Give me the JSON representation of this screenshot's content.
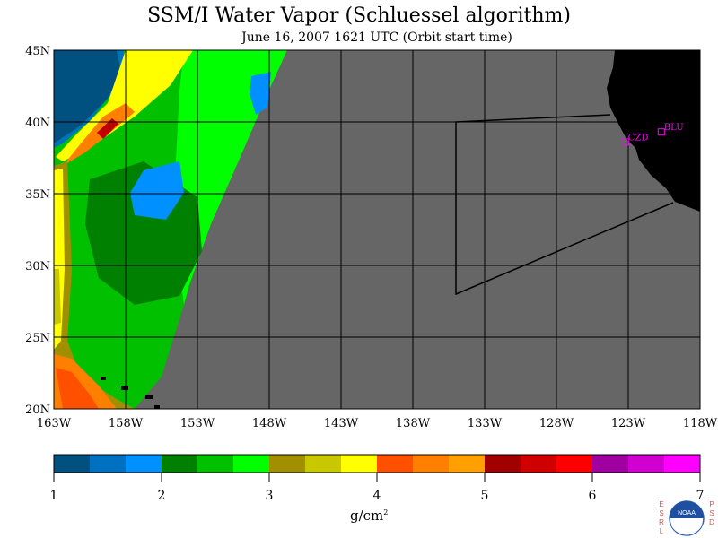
{
  "title": "SSM/I Water Vapor (Schluessel algorithm)",
  "subtitle": "June 16, 2007  1621 UTC  (Orbit start time)",
  "map": {
    "lat_labels": [
      "45N",
      "40N",
      "35N",
      "30N",
      "25N",
      "20N"
    ],
    "lon_labels": [
      "163W",
      "158W",
      "153W",
      "148W",
      "143W",
      "138W",
      "133W",
      "128W",
      "123W",
      "118W"
    ],
    "stations": [
      {
        "label": "CZD",
        "lat": 38.6,
        "lon": -123.2
      },
      {
        "label": "BLU",
        "lat": 39.3,
        "lon": -120.7
      }
    ],
    "colors": {
      "nodata": "#666666",
      "land": "#000000",
      "grid": "#000000",
      "station": "#ff00ff"
    }
  },
  "colorbar": {
    "unit_base": "g/cm",
    "unit_exp": "2",
    "tick_labels": [
      "1",
      "2",
      "3",
      "4",
      "5",
      "6",
      "7"
    ],
    "colors": [
      "#005080",
      "#0070c0",
      "#0090ff",
      "#008000",
      "#00c000",
      "#00ff00",
      "#a09000",
      "#c8c800",
      "#ffff00",
      "#ff5000",
      "#ff8000",
      "#ffa000",
      "#a00000",
      "#d00000",
      "#ff0000",
      "#a000a0",
      "#d000d0",
      "#ff00ff"
    ]
  },
  "logo": {
    "left_letters": "ESRL",
    "right_letters": "PSD",
    "emblem": "NOAA"
  }
}
